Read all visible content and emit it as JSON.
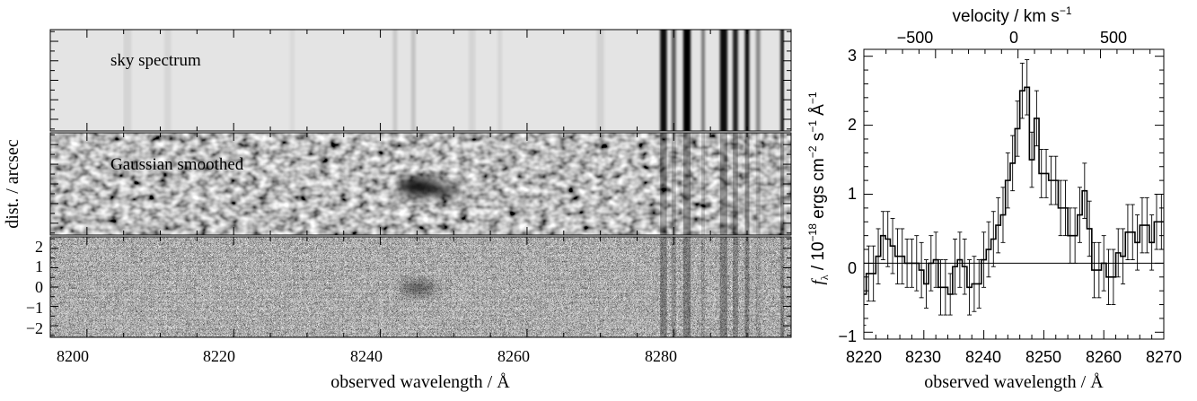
{
  "left_panel": {
    "xlabel": "observed wavelength / Å",
    "ylabel": "dist. / arcsec",
    "x_ticks": [
      "8200",
      "8220",
      "8240",
      "8260",
      "8280"
    ],
    "y_ticks": [
      "2",
      "1",
      "0",
      "−1",
      "−2"
    ],
    "strips": [
      {
        "label": "sky spectrum"
      },
      {
        "label": "Gaussian smoothed"
      },
      {
        "label": ""
      }
    ]
  },
  "right_panel": {
    "xlabel": "observed wavelength / Å",
    "ylabel_pre": "f",
    "ylabel_sub": "λ",
    "ylabel_mid": " / 10",
    "ylabel_exp1": "−18",
    "ylabel_mid2": " ergs cm",
    "ylabel_exp2": "−2",
    "ylabel_mid3": " s",
    "ylabel_exp3": "−1",
    "ylabel_mid4": " Å",
    "ylabel_exp4": "−1",
    "top_label": "velocity / km s",
    "top_label_exp": "−1",
    "x_ticks": [
      "8220",
      "8230",
      "8240",
      "8250",
      "8260",
      "8270"
    ],
    "y_ticks": [
      "3",
      "2",
      "1",
      "0",
      "−1"
    ],
    "top_ticks": [
      "−500",
      "0",
      "500"
    ]
  },
  "chart_data": [
    {
      "type": "heatmap",
      "description_note": "",
      "x_range": [
        8195,
        8296
      ],
      "y_range": [
        -2.6,
        2.6
      ],
      "xlabel": "observed wavelength / Å",
      "ylabel": "dist. / arcsec",
      "x_ticks": [
        8200,
        8220,
        8240,
        8260,
        8280
      ],
      "y_ticks": [
        2,
        1,
        0,
        -1,
        -2
      ],
      "panels": [
        "sky spectrum",
        "Gaussian smoothed",
        ""
      ],
      "sky_lines": [
        {
          "x": 8205.5,
          "width": 1.1,
          "strength": 0.07
        },
        {
          "x": 8211.0,
          "width": 0.9,
          "strength": 0.06
        },
        {
          "x": 8228.0,
          "width": 0.6,
          "strength": 0.05
        },
        {
          "x": 8242.0,
          "width": 0.6,
          "strength": 0.12
        },
        {
          "x": 8244.5,
          "width": 0.6,
          "strength": 0.15
        },
        {
          "x": 8252.5,
          "width": 0.9,
          "strength": 0.07
        },
        {
          "x": 8256.3,
          "width": 0.6,
          "strength": 0.06
        },
        {
          "x": 8270.0,
          "width": 1.0,
          "strength": 0.08
        },
        {
          "x": 8278.6,
          "width": 0.9,
          "strength": 0.97
        },
        {
          "x": 8280.0,
          "width": 0.6,
          "strength": 0.6
        },
        {
          "x": 8281.8,
          "width": 1.0,
          "strength": 0.98
        },
        {
          "x": 8284.0,
          "width": 0.5,
          "strength": 0.45
        },
        {
          "x": 8286.8,
          "width": 1.0,
          "strength": 0.97
        },
        {
          "x": 8288.4,
          "width": 0.7,
          "strength": 0.85
        },
        {
          "x": 8290.0,
          "width": 0.6,
          "strength": 0.95
        },
        {
          "x": 8291.5,
          "width": 0.6,
          "strength": 0.4
        },
        {
          "x": 8294.8,
          "width": 0.5,
          "strength": 0.9
        }
      ],
      "emission_blob": {
        "x": 8246.5,
        "y": -0.1
      }
    },
    {
      "type": "line",
      "drawstyle": "steps-mid",
      "xlabel": "observed wavelength / Å",
      "top_xlabel": "velocity / km s−1",
      "xlim": [
        8220,
        8270
      ],
      "ylim": [
        -1.1,
        3.1
      ],
      "top_ticks_velocity": [
        -500,
        0,
        500
      ],
      "zero_line": true,
      "series": [
        {
          "x": [
            8220.0,
            8220.8,
            8221.6,
            8222.4,
            8223.2,
            8224.0,
            8224.8,
            8225.6,
            8226.4,
            8227.2,
            8228.0,
            8228.8,
            8229.6,
            8230.4,
            8231.2,
            8232.0,
            8232.8,
            8233.6,
            8234.4,
            8235.2,
            8236.0,
            8236.8,
            8237.6,
            8238.4,
            8239.2,
            8240.0,
            8240.8,
            8241.6,
            8242.4,
            8243.2,
            8244.0,
            8244.8,
            8245.6,
            8246.4,
            8247.2,
            8248.0,
            8248.8,
            8249.6,
            8250.4,
            8251.2,
            8252.0,
            8252.8,
            8253.6,
            8254.4,
            8255.2,
            8256.0,
            8256.8,
            8257.6,
            8258.4,
            8259.2,
            8260.0,
            8260.8,
            8261.6,
            8262.4,
            8263.2,
            8264.0,
            8264.8,
            8265.6,
            8266.4,
            8267.2,
            8268.0,
            8268.8,
            8269.6
          ],
          "y": [
            -0.45,
            -0.15,
            -0.15,
            0.1,
            0.4,
            0.35,
            0.25,
            0.1,
            0.1,
            0.0,
            0.0,
            0.0,
            -0.1,
            -0.3,
            0.0,
            0.05,
            -0.35,
            -0.35,
            -0.45,
            -0.05,
            0.05,
            -0.05,
            -0.35,
            -0.3,
            -0.3,
            0.05,
            0.2,
            0.35,
            0.55,
            0.7,
            1.2,
            1.45,
            1.95,
            2.5,
            2.55,
            1.5,
            2.1,
            1.3,
            1.3,
            1.2,
            1.2,
            0.8,
            0.8,
            0.4,
            0.4,
            0.7,
            1.05,
            0.5,
            -0.1,
            -0.1,
            0.0,
            -0.2,
            -0.2,
            0.15,
            0.1,
            0.45,
            0.45,
            0.3,
            0.55,
            0.55,
            0.3,
            0.6,
            0.6
          ],
          "yerr": [
            0.45,
            0.4,
            0.4,
            0.4,
            0.35,
            0.4,
            0.4,
            0.4,
            0.4,
            0.35,
            0.35,
            0.4,
            0.4,
            0.35,
            0.4,
            0.4,
            0.4,
            0.4,
            0.3,
            0.4,
            0.4,
            0.4,
            0.4,
            0.4,
            0.35,
            0.4,
            0.4,
            0.4,
            0.4,
            0.4,
            0.4,
            0.4,
            0.4,
            0.4,
            0.4,
            0.4,
            0.4,
            0.35,
            0.35,
            0.35,
            0.35,
            0.4,
            0.4,
            0.4,
            0.4,
            0.4,
            0.4,
            0.4,
            0.4,
            0.4,
            0.4,
            0.4,
            0.4,
            0.35,
            0.4,
            0.4,
            0.4,
            0.4,
            0.4,
            0.4,
            0.4,
            0.4,
            0.4
          ]
        }
      ]
    }
  ]
}
